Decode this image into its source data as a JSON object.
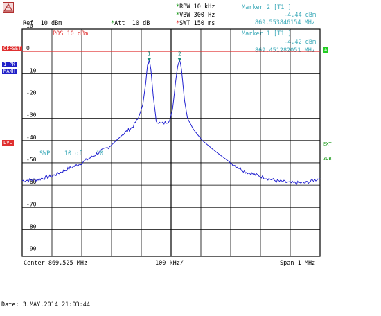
{
  "header": {
    "rbw_label": "RBW",
    "rbw_value": "10 kHz",
    "vbw_label": "VBW",
    "vbw_value": "300 Hz",
    "swt_label": "SWT",
    "swt_value": "150 ms",
    "ref_label": "Ref",
    "ref_value": "10 dBm",
    "att_label": "Att",
    "att_value": "10 dB",
    "pos_text": "POS 10 dBm"
  },
  "markers": [
    {
      "title": "Marker 2 [T1 ]",
      "level": "-4.44 dBm",
      "freq": "869.553846154 MHz"
    },
    {
      "title": "Marker 1 [T1 ]",
      "level": "-4.42 dBm",
      "freq": "869.451282051 MHz"
    }
  ],
  "side_labels": {
    "offset": "OFFSET",
    "trace_1": "1 PK",
    "trace_2": "MAXH",
    "a_badge": "A",
    "ext": "EXT",
    "db3": "3DB",
    "bottom_left": "LVL"
  },
  "sweep": {
    "label": "SWP",
    "count": "10 of",
    "total": "10"
  },
  "footer": {
    "center": "Center  869.525 MHz",
    "div": "100 kHz/",
    "span": "Span  1 MHz",
    "date": "Date: 3.MAY.2014  21:03:44"
  },
  "chart_data": {
    "type": "line",
    "title": "",
    "xlabel": "",
    "ylabel": "",
    "x_unit": "MHz",
    "y_unit": "dBm",
    "xlim": [
      869.025,
      870.025
    ],
    "ylim": [
      -92,
      10
    ],
    "y_ticks": [
      10,
      0,
      -10,
      -20,
      -30,
      -40,
      -50,
      -60,
      -70,
      -80,
      -90
    ],
    "y_tick_labels": [
      "10",
      "0",
      "-10",
      "-20",
      "-30",
      "-40",
      "-50",
      "-60",
      "-70",
      "-80",
      "-90"
    ],
    "grid": true,
    "series": [
      {
        "color": "#2020d0",
        "x": [
          869.025,
          869.075,
          869.125,
          869.175,
          869.225,
          869.275,
          869.325,
          869.365,
          869.395,
          869.415,
          869.43,
          869.44,
          869.446,
          869.4513,
          869.457,
          869.465,
          869.475,
          869.49,
          869.505,
          869.52,
          869.53,
          869.54,
          869.547,
          869.5538,
          869.56,
          869.57,
          869.58,
          869.6,
          869.63,
          869.675,
          869.725,
          869.775,
          869.825,
          869.875,
          869.925,
          869.975,
          870.025
        ],
        "y": [
          -58,
          -57.5,
          -56,
          -53,
          -50,
          -46,
          -42,
          -37,
          -34,
          -30,
          -24,
          -14,
          -6,
          -4.42,
          -8,
          -20,
          -31,
          -32.5,
          -32,
          -31,
          -26,
          -14,
          -6,
          -4.44,
          -8,
          -22,
          -30,
          -35,
          -40,
          -45,
          -50,
          -54,
          -56,
          -58,
          -59,
          -59,
          -57
        ]
      }
    ],
    "markers": [
      {
        "label": "1",
        "x": 869.4513,
        "y": -4.42
      },
      {
        "label": "2",
        "x": 869.5538,
        "y": -4.44
      }
    ]
  }
}
